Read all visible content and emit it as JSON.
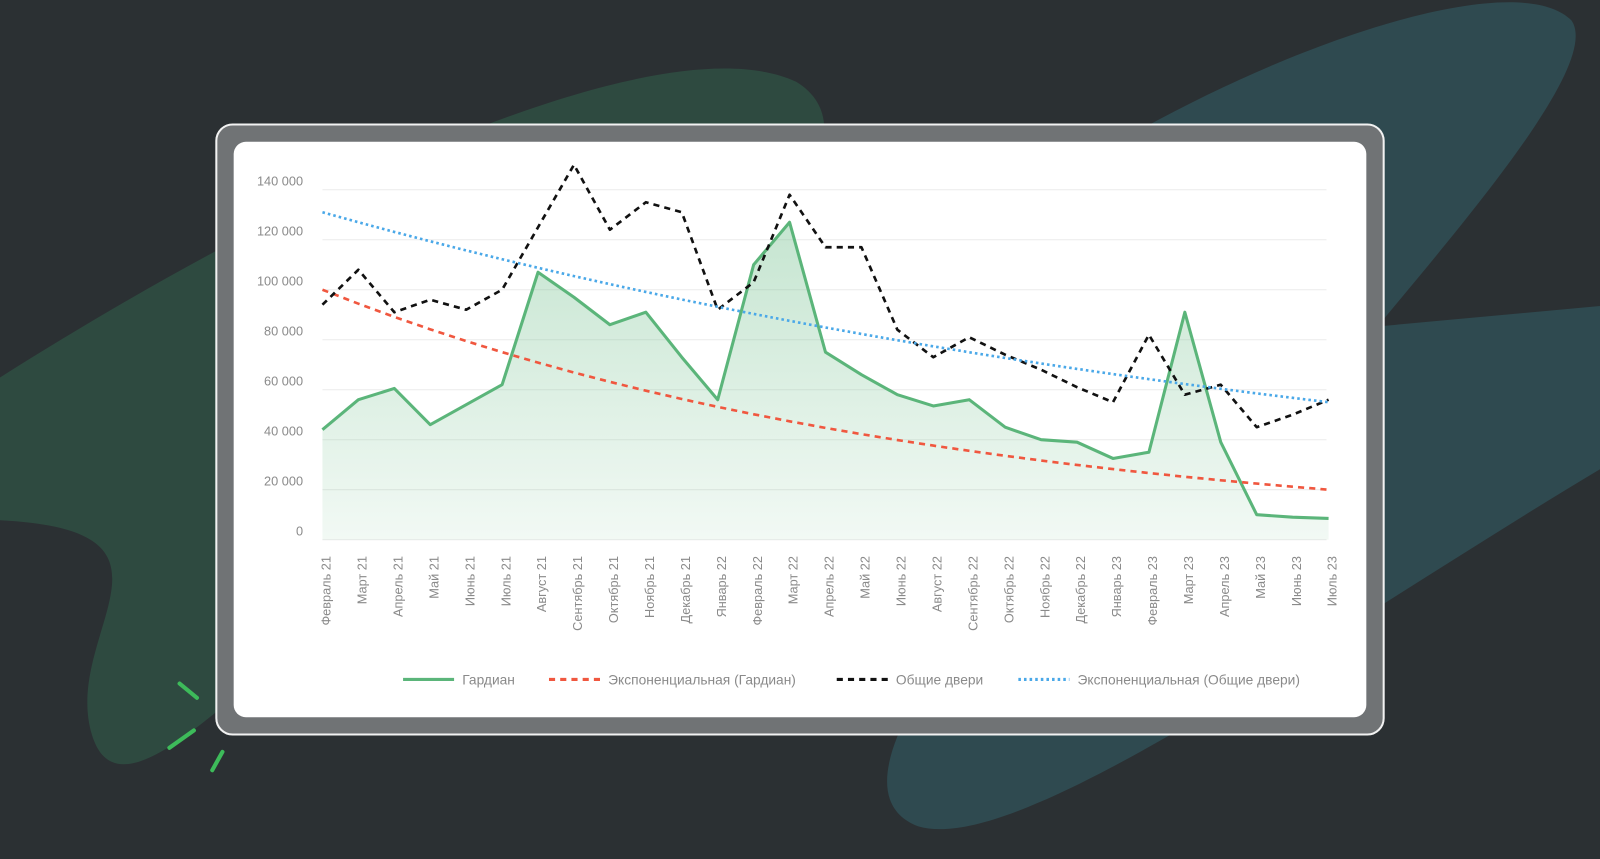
{
  "chart_data": {
    "type": "line",
    "categories": [
      "Февраль 21",
      "Март 21",
      "Апрель 21",
      "Май 21",
      "Июнь 21",
      "Июль 21",
      "Август 21",
      "Сентябрь 21",
      "Октябрь 21",
      "Ноябрь 21",
      "Декабрь 21",
      "Январь 22",
      "Февраль 22",
      "Март 22",
      "Апрель 22",
      "Май 22",
      "Июнь 22",
      "Август 22",
      "Сентябрь 22",
      "Октябрь 22",
      "Ноябрь 22",
      "Декабрь 22",
      "Январь 23",
      "Февраль 23",
      "Март 23",
      "Апрель 23",
      "Май 23",
      "Июнь 23",
      "Июль 23"
    ],
    "series": [
      {
        "name": "Гардиан",
        "color": "#5bb57a",
        "style": "solid",
        "area": true,
        "values": [
          44000,
          56000,
          60500,
          46000,
          54000,
          62000,
          107000,
          97000,
          86000,
          91000,
          73000,
          56000,
          110000,
          127000,
          75000,
          66000,
          58000,
          53500,
          56000,
          45000,
          40000,
          39000,
          32500,
          35000,
          91000,
          39000,
          10000,
          9000,
          8500
        ]
      },
      {
        "name": "Экспоненциальная (Гардиан)",
        "color": "#f0573f",
        "style": "dashed",
        "values": [
          100000,
          94414,
          89140,
          84160,
          79460,
          75020,
          70830,
          66870,
          63140,
          59610,
          56280,
          53140,
          50170,
          47370,
          44720,
          42220,
          39870,
          37640,
          35540,
          33550,
          31680,
          29910,
          28240,
          26660,
          25170,
          23770,
          22440,
          21190,
          20000
        ]
      },
      {
        "name": "Общие двери",
        "color": "#111111",
        "style": "dashed",
        "values": [
          94000,
          108000,
          91000,
          96000,
          92000,
          100000,
          125000,
          150000,
          124000,
          135000,
          131000,
          92000,
          103000,
          138000,
          117000,
          117000,
          84000,
          73000,
          81000,
          74000,
          68000,
          61000,
          55000,
          82000,
          58000,
          62000,
          45000,
          50000,
          56000
        ]
      },
      {
        "name": "Экспоненциальная (Общие двери)",
        "color": "#4aa8e8",
        "style": "dotted",
        "values": [
          131000,
          127000,
          123130,
          119370,
          115730,
          112200,
          108770,
          105450,
          102230,
          99110,
          96090,
          93160,
          90320,
          87560,
          84890,
          82300,
          79790,
          77350,
          74990,
          72700,
          70480,
          68330,
          66250,
          64230,
          62270,
          60370,
          58520,
          56740,
          55000
        ]
      }
    ],
    "ylim": [
      0,
      140000
    ],
    "yticks": [
      {
        "value": 0,
        "label": "0"
      },
      {
        "value": 20000,
        "label": "20 000"
      },
      {
        "value": 40000,
        "label": "40 000"
      },
      {
        "value": 60000,
        "label": "60 000"
      },
      {
        "value": 80000,
        "label": "80 000"
      },
      {
        "value": 100000,
        "label": "100 000"
      },
      {
        "value": 120000,
        "label": "120 000"
      },
      {
        "value": 140000,
        "label": "140 000"
      }
    ],
    "grid": true,
    "legend": "bottom"
  }
}
